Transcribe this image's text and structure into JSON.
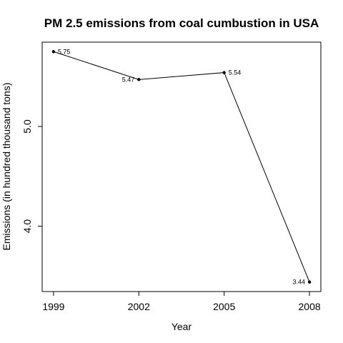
{
  "chart_data": {
    "type": "line",
    "title": "PM 2.5 emissions from coal cumbustion in USA",
    "xlabel": "Year",
    "ylabel": "Emissions (in hundred thousand tons)",
    "x": [
      1999,
      2002,
      2005,
      2008
    ],
    "values": [
      5.75,
      5.47,
      5.54,
      3.44
    ],
    "data_labels": [
      "5.75",
      "5.47",
      "5.54",
      "3.44"
    ],
    "x_ticks": [
      "1999",
      "2002",
      "2005",
      "2008"
    ],
    "y_ticks": [
      {
        "value": 4.0,
        "label": "4.0"
      },
      {
        "value": 5.0,
        "label": "5.0"
      }
    ],
    "xlim": [
      1998.6,
      2008.4
    ],
    "ylim": [
      3.345,
      5.845
    ],
    "grid": false,
    "legend": "none"
  }
}
